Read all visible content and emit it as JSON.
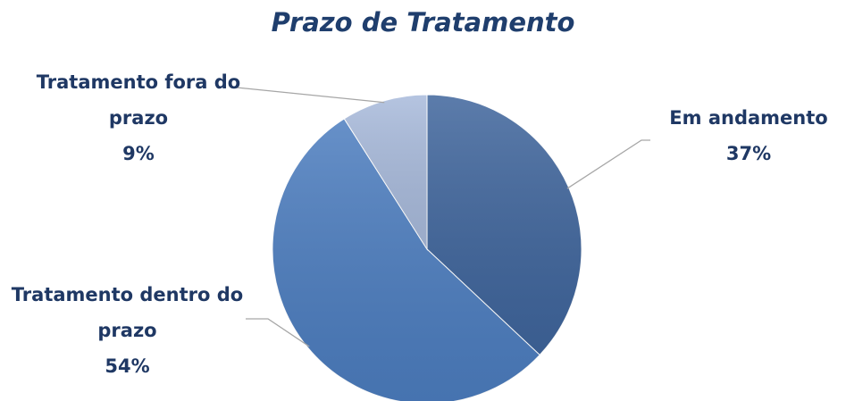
{
  "chart_data": {
    "type": "pie",
    "title": "Prazo de Tratamento",
    "categories": [
      "Em andamento",
      "Tratamento dentro do prazo",
      "Tratamento fora do prazo"
    ],
    "values": [
      37,
      54,
      9
    ],
    "value_labels": [
      "37%",
      "54%",
      "9%"
    ],
    "colors": [
      "#3f659c",
      "#4c7dbf",
      "#a8badb"
    ]
  }
}
